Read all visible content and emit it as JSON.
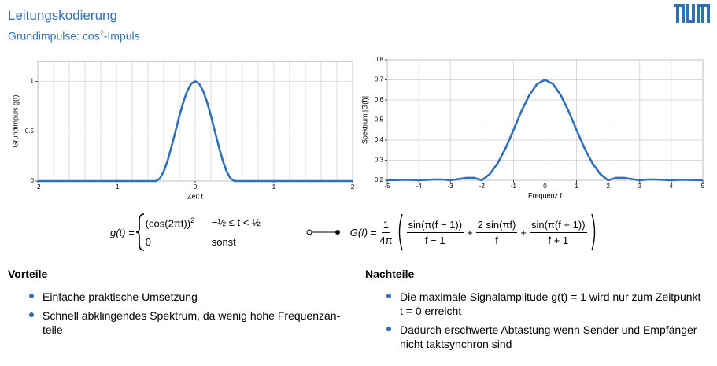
{
  "header": {
    "title": "Leitungskodierung",
    "subtitle": [
      "Grundimpulse: cos",
      "2",
      "-Impuls"
    ]
  },
  "chart_data": [
    {
      "type": "line",
      "xlabel": "Zeit t",
      "ylabel": "Grundimpuls g(t)",
      "xlim": [
        -2,
        2
      ],
      "ylim": [
        0,
        1.2
      ],
      "xticks": [
        -2,
        -1,
        0,
        1,
        2
      ],
      "yticks": [
        0,
        0.5,
        1
      ],
      "grid": true,
      "xgrid": [
        -2,
        -1.8,
        -1.6,
        -1.4,
        -1.2,
        -1,
        -0.8,
        -0.6,
        -0.4,
        -0.2,
        0,
        0.2,
        0.4,
        0.6,
        0.8,
        1,
        1.2,
        1.4,
        1.6,
        1.8,
        2
      ],
      "series": [
        {
          "name": "g(t)",
          "color": "#2f70b8",
          "x": [
            -2,
            -0.5,
            -0.45,
            -0.4,
            -0.35,
            -0.3,
            -0.25,
            -0.2,
            -0.15,
            -0.1,
            -0.05,
            0,
            0.05,
            0.1,
            0.15,
            0.2,
            0.25,
            0.3,
            0.35,
            0.4,
            0.45,
            0.5,
            2
          ],
          "values": [
            0,
            0,
            0.0245,
            0.0955,
            0.2061,
            0.3455,
            0.5,
            0.6545,
            0.7939,
            0.9045,
            0.9755,
            1,
            0.9755,
            0.9045,
            0.7939,
            0.6545,
            0.5,
            0.3455,
            0.2061,
            0.0955,
            0.0245,
            0,
            0
          ]
        }
      ]
    },
    {
      "type": "line",
      "xlabel": "Frequenz f",
      "ylabel": "Spektrum |G(f)|",
      "xlim": [
        -5,
        5
      ],
      "ylim": [
        0.2,
        0.8
      ],
      "xticks": [
        -5,
        -4,
        -3,
        -2,
        -1,
        0,
        1,
        2,
        3,
        4,
        5
      ],
      "yticks": [
        0.2,
        0.3,
        0.4,
        0.5,
        0.6,
        0.7,
        0.8
      ],
      "grid": true,
      "series": [
        {
          "name": "|G(f)|",
          "color": "#2f70b8",
          "x": [
            -5,
            -4.75,
            -4.5,
            -4.25,
            -4,
            -3.75,
            -3.5,
            -3.25,
            -3,
            -2.75,
            -2.5,
            -2.25,
            -2,
            -1.75,
            -1.5,
            -1.25,
            -1,
            -0.75,
            -0.5,
            -0.25,
            0,
            0.25,
            0.5,
            0.75,
            1,
            1.25,
            1.5,
            1.75,
            2,
            2.25,
            2.5,
            2.75,
            3,
            3.25,
            3.5,
            3.75,
            4,
            4.25,
            4.5,
            4.75,
            5
          ],
          "values": [
            0.2,
            0.201,
            0.202,
            0.202,
            0.2,
            0.202,
            0.204,
            0.204,
            0.2,
            0.206,
            0.212,
            0.212,
            0.2,
            0.231,
            0.285,
            0.36,
            0.45,
            0.543,
            0.624,
            0.68,
            0.7,
            0.68,
            0.624,
            0.543,
            0.45,
            0.36,
            0.285,
            0.231,
            0.2,
            0.212,
            0.212,
            0.206,
            0.2,
            0.204,
            0.204,
            0.202,
            0.2,
            0.202,
            0.202,
            0.201,
            0.2
          ]
        }
      ]
    }
  ],
  "formula": {
    "lhs": "g(t) =",
    "case1": "(cos(2πt))",
    "case1_exp": "2",
    "cond1": "−½ ≤ t < ½",
    "case2": "0",
    "cond2": "sonst",
    "rhs": "G(f) =",
    "pre_num": "1",
    "pre_den": "4π",
    "t1_num": "sin(π(f − 1))",
    "t1_den": "f − 1",
    "plus1": "+",
    "t2_num": "2 sin(πf)",
    "t2_den": "f",
    "plus2": "+",
    "t3_num": "sin(π(f + 1))",
    "t3_den": "f + 1"
  },
  "pros": {
    "heading": "Vorteile",
    "items": [
      [
        "Einfache praktische Umsetzung"
      ],
      [
        "Schnell abklingendes Spektrum, da wenig hohe Frequenzan-",
        "teile"
      ]
    ]
  },
  "cons": {
    "heading": "Nachteile",
    "items": [
      [
        "Die maximale Signalamplitude g(t) = 1 wird nur zum Zeitpunkt",
        "t = 0 erreicht"
      ],
      [
        "Dadurch erschwerte Abtastung wenn Sender und Empfänger",
        "nicht taktsynchron sind"
      ]
    ]
  }
}
